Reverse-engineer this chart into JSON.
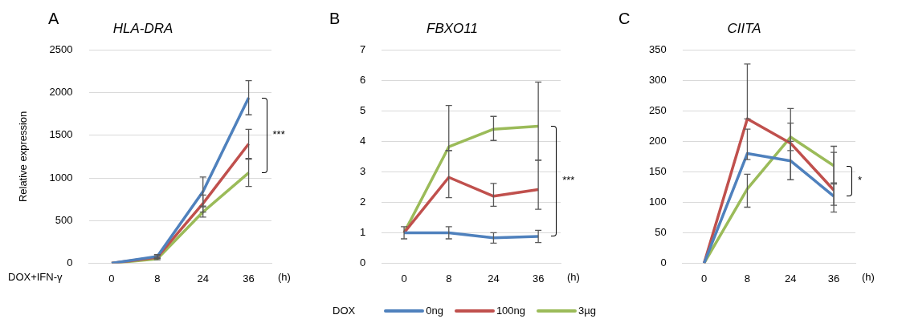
{
  "chart_data": [
    {
      "type": "line",
      "title": "HLA-DRA",
      "ylabel": "Relative expression",
      "xlabel": "(h)",
      "categories": [
        "0",
        "8",
        "24",
        "36"
      ],
      "ylim": [
        0,
        2500
      ],
      "yticks": [
        0,
        500,
        1000,
        1500,
        2000,
        2500
      ],
      "grid": "y",
      "legend": false,
      "marker": "none",
      "line_style": "solid",
      "annotations": [
        "A",
        "DOX+IFN-γ",
        {
          "text": "***",
          "x": "36",
          "y": 1500
        }
      ],
      "series": [
        {
          "color": "#4f81bd",
          "values": [
            0,
            80,
            840,
            1940
          ],
          "errors": [
            null,
            20,
            170,
            200
          ]
        },
        {
          "color": "#c0504d",
          "values": [
            0,
            70,
            700,
            1400
          ],
          "errors": [
            null,
            15,
            100,
            170
          ]
        },
        {
          "color": "#9bbb59",
          "values": [
            0,
            50,
            600,
            1060
          ],
          "errors": [
            null,
            10,
            60,
            160
          ]
        }
      ]
    },
    {
      "type": "line",
      "title": "FBXO11",
      "xlabel": "(h)",
      "categories": [
        "0",
        "8",
        "24",
        "36"
      ],
      "ylim": [
        0,
        7
      ],
      "yticks": [
        0,
        1,
        2,
        3,
        4,
        5,
        6,
        7
      ],
      "grid": "y",
      "legend": "bottom",
      "legend_title": "DOX",
      "marker": "none",
      "line_style": "solid",
      "annotations": [
        "B",
        {
          "text": "***",
          "x": "36",
          "y": 2.7
        }
      ],
      "series": [
        {
          "name": "0ng",
          "color": "#4f81bd",
          "values": [
            1,
            1,
            0.83,
            0.88
          ],
          "errors": [
            0.2,
            0.2,
            0.17,
            0.2
          ]
        },
        {
          "name": "100ng",
          "color": "#c0504d",
          "values": [
            1,
            2.82,
            2.2,
            2.42
          ],
          "errors": [
            null,
            [
              2.15,
              3.7
            ],
            [
              1.87,
              2.62
            ],
            [
              1.77,
              3.38
            ]
          ]
        },
        {
          "name": "3µg",
          "color": "#9bbb59",
          "values": [
            1,
            3.82,
            4.4,
            4.5
          ],
          "errors": [
            null,
            [
              3.7,
              5.18
            ],
            [
              4.03,
              4.82
            ],
            [
              3.38,
              5.95
            ]
          ]
        }
      ]
    },
    {
      "type": "line",
      "title": "CIITA",
      "xlabel": "(h)",
      "categories": [
        "0",
        "8",
        "24",
        "36"
      ],
      "ylim": [
        0,
        350
      ],
      "yticks": [
        0,
        50,
        100,
        150,
        200,
        250,
        300,
        350
      ],
      "grid": "y",
      "legend": false,
      "marker": "none",
      "line_style": "solid",
      "annotations": [
        "C",
        {
          "text": "*",
          "x": "36",
          "y": 135
        }
      ],
      "series": [
        {
          "color": "#4f81bd",
          "values": [
            0,
            180,
            168,
            110
          ],
          "errors": [
            null,
            [
              170,
              220
            ],
            [
              137,
              200
            ],
            [
              95,
              132
            ]
          ]
        },
        {
          "color": "#c0504d",
          "values": [
            0,
            237,
            197,
            120
          ],
          "errors": [
            null,
            [
              237,
              327
            ],
            [
              137,
              254
            ],
            [
              84,
              182
            ]
          ]
        },
        {
          "color": "#9bbb59",
          "values": [
            0,
            122,
            207,
            160
          ],
          "errors": [
            null,
            [
              92,
              146
            ],
            [
              185,
              230
            ],
            [
              130,
              192
            ]
          ]
        }
      ]
    }
  ]
}
